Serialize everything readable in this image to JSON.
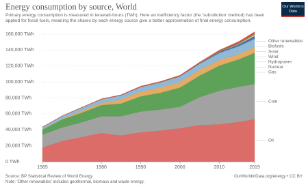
{
  "chart_data": {
    "type": "stacked_area",
    "title": "Energy consumption by source, World",
    "subtitle": "Primary energy consumption is measured in terawatt-hours (TWh). Here an inefficiency factor (the 'substitution' method) has been applied for fossil fuels, meaning the shares by each energy source give a better approximation of final energy consumption.",
    "logo": "Our World in Data",
    "source": "Source: BP Statistical Review of World Energy",
    "note": "Note: 'Other renewables' includes geothermal, biomass and waste energy.",
    "credit": "OurWorldinData.org/energy • CC BY",
    "x": [
      1965,
      1970,
      1975,
      1980,
      1985,
      1990,
      1995,
      2000,
      2005,
      2010,
      2015,
      2019
    ],
    "xlim": [
      1965,
      2019
    ],
    "xticks": [
      1965,
      1980,
      1990,
      2000,
      2010,
      2019
    ],
    "ylim": [
      0,
      160000
    ],
    "yticks": [
      {
        "value": 0,
        "label": "0 TWh"
      },
      {
        "value": 20000,
        "label": "20,000 TWh"
      },
      {
        "value": 40000,
        "label": "40,000 TWh"
      },
      {
        "value": 60000,
        "label": "60,000 TWh"
      },
      {
        "value": 80000,
        "label": "80,000 TWh"
      },
      {
        "value": 100000,
        "label": "100,000 TWh"
      },
      {
        "value": 120000,
        "label": "120,000 TWh"
      },
      {
        "value": 140000,
        "label": "140,000 TWh"
      },
      {
        "value": 160000,
        "label": "160,000 TWh"
      }
    ],
    "grid": true,
    "series": [
      {
        "name": "Oil",
        "color": "#d9605a",
        "values": [
          18000,
          26000,
          31000,
          36000,
          33000,
          37000,
          39000,
          42000,
          46000,
          47000,
          50000,
          53600
        ]
      },
      {
        "name": "Coal",
        "color": "#9a9a9a",
        "values": [
          16000,
          17000,
          18500,
          21000,
          24000,
          26000,
          26500,
          27000,
          35000,
          42000,
          44000,
          43800
        ]
      },
      {
        "name": "Gas",
        "color": "#4f9a4a",
        "values": [
          6300,
          10000,
          12000,
          14000,
          16000,
          19000,
          21000,
          24000,
          27000,
          31500,
          34500,
          39300
        ]
      },
      {
        "name": "Nuclear",
        "color": "#e3a356",
        "values": [
          300,
          800,
          2300,
          2600,
          5000,
          6000,
          6500,
          7000,
          7200,
          7000,
          6500,
          7000
        ]
      },
      {
        "name": "Hydropower",
        "color": "#86b3d3",
        "values": [
          2800,
          3500,
          4100,
          4700,
          5200,
          5700,
          6400,
          7000,
          7600,
          8800,
          10000,
          10500
        ]
      },
      {
        "name": "Wind",
        "color": "#3d5fa6",
        "values": [
          0,
          0,
          0,
          0,
          0,
          10,
          30,
          100,
          300,
          900,
          2200,
          3500
        ]
      },
      {
        "name": "Solar",
        "color": "#f0c23a",
        "values": [
          0,
          0,
          0,
          0,
          0,
          0,
          0,
          0,
          10,
          80,
          650,
          1800
        ]
      },
      {
        "name": "Biofuels",
        "color": "#5b7c5a",
        "values": [
          0,
          0,
          0,
          100,
          200,
          300,
          350,
          400,
          600,
          1200,
          1400,
          1600
        ]
      },
      {
        "name": "Other renewables",
        "color": "#d9463f",
        "values": [
          200,
          300,
          400,
          500,
          600,
          800,
          900,
          1000,
          1200,
          1400,
          1700,
          1900
        ]
      }
    ]
  }
}
